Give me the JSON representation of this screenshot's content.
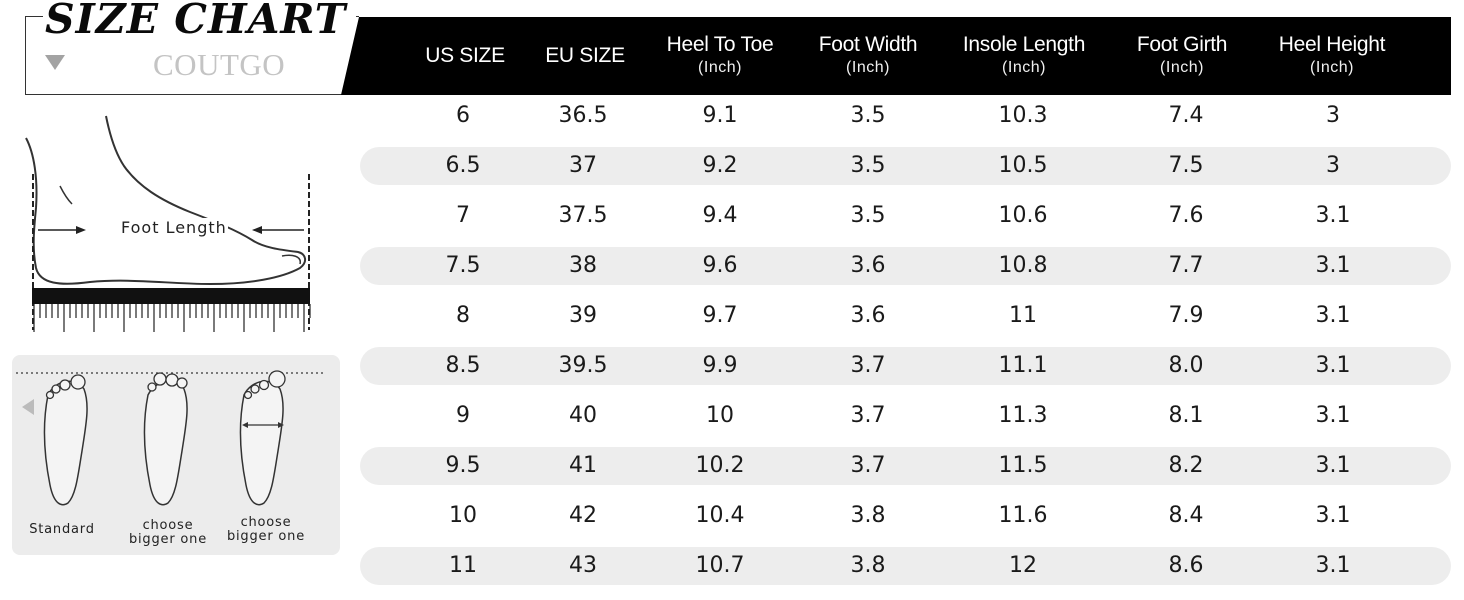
{
  "title": "SIZE CHART",
  "brand": "COUTGO",
  "headers": [
    {
      "main": "US SIZE",
      "sub": ""
    },
    {
      "main": "EU SIZE",
      "sub": ""
    },
    {
      "main": "Heel To Toe",
      "sub": "(Inch)"
    },
    {
      "main": "Foot Width",
      "sub": "(Inch)"
    },
    {
      "main": "Insole Length",
      "sub": "(Inch)"
    },
    {
      "main": "Foot Girth",
      "sub": "(Inch)"
    },
    {
      "main": "Heel Height",
      "sub": "(Inch)"
    }
  ],
  "rows": [
    [
      "6",
      "36.5",
      "9.1",
      "3.5",
      "10.3",
      "7.4",
      "3"
    ],
    [
      "6.5",
      "37",
      "9.2",
      "3.5",
      "10.5",
      "7.5",
      "3"
    ],
    [
      "7",
      "37.5",
      "9.4",
      "3.5",
      "10.6",
      "7.6",
      "3.1"
    ],
    [
      "7.5",
      "38",
      "9.6",
      "3.6",
      "10.8",
      "7.7",
      "3.1"
    ],
    [
      "8",
      "39",
      "9.7",
      "3.6",
      "11",
      "7.9",
      "3.1"
    ],
    [
      "8.5",
      "39.5",
      "9.9",
      "3.7",
      "11.1",
      "8.0",
      "3.1"
    ],
    [
      "9",
      "40",
      "10",
      "3.7",
      "11.3",
      "8.1",
      "3.1"
    ],
    [
      "9.5",
      "41",
      "10.2",
      "3.7",
      "11.5",
      "8.2",
      "3.1"
    ],
    [
      "10",
      "42",
      "10.4",
      "3.8",
      "11.6",
      "8.4",
      "3.1"
    ],
    [
      "11",
      "43",
      "10.7",
      "3.8",
      "12",
      "8.6",
      "3.1"
    ]
  ],
  "foot_length_label": "Foot Length",
  "toe_guides": [
    {
      "line1": "Standard",
      "line2": ""
    },
    {
      "line1": "choose",
      "line2": "bigger one"
    },
    {
      "line1": "choose",
      "line2": "bigger one"
    }
  ]
}
